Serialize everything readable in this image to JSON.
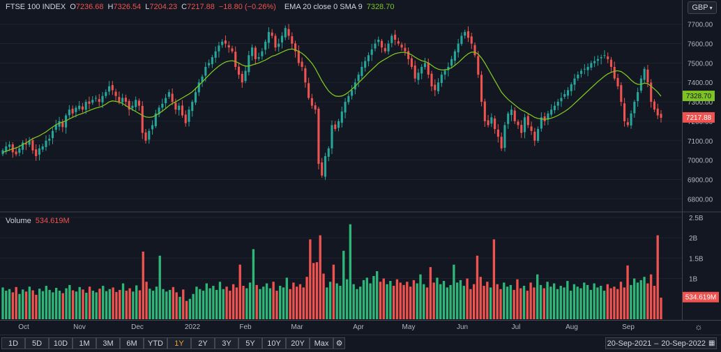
{
  "legend": {
    "symbol": "FTSE 100 INDEX",
    "o_label": "O",
    "o_value": "7236.68",
    "h_label": "H",
    "h_value": "7326.54",
    "l_label": "L",
    "l_value": "7204.23",
    "c_label": "C",
    "c_value": "7217.88",
    "change": "−18.80 (−0.26%)",
    "ema_label": "EMA 20 close 0 SMA 9",
    "ema_value": "7328.70"
  },
  "currency": "GBP",
  "volume_legend": {
    "label": "Volume",
    "value": "534.619M"
  },
  "colors": {
    "up": "#26a69a",
    "upbar": "#2fb679",
    "down": "#ef5350",
    "ema": "#7ec321",
    "bg": "#131722",
    "grid": "#1e222d",
    "axis_text": "#b2b5be"
  },
  "chart_data": {
    "type": "candlestick",
    "price_axis": {
      "ticks": [
        "7700.00",
        "7600.00",
        "7500.00",
        "7400.00",
        "7300.00",
        "7200.00",
        "7100.00",
        "7000.00",
        "6900.00",
        "6800.00"
      ],
      "ylim": [
        6740,
        7760
      ]
    },
    "volume_axis": {
      "ticks": [
        "2.5B",
        "2B",
        "1.5B",
        "1B"
      ],
      "ylim": [
        0,
        2.6
      ]
    },
    "x_labels": [
      "Oct",
      "Nov",
      "Dec",
      "2022",
      "Feb",
      "Mar",
      "Apr",
      "May",
      "Jun",
      "Jul",
      "Aug",
      "Sep"
    ],
    "price_markers": {
      "ema": "7328.70",
      "last": "7217.88"
    },
    "volume_marker": "534.619M",
    "closes": [
      7050,
      7070,
      7080,
      7040,
      7030,
      7060,
      7090,
      7080,
      7100,
      7050,
      7020,
      7060,
      7070,
      7100,
      7110,
      7150,
      7180,
      7200,
      7170,
      7230,
      7260,
      7240,
      7270,
      7280,
      7260,
      7300,
      7290,
      7310,
      7320,
      7300,
      7330,
      7350,
      7380,
      7360,
      7330,
      7300,
      7320,
      7300,
      7260,
      7280,
      7310,
      7280,
      7140,
      7100,
      7150,
      7180,
      7240,
      7270,
      7290,
      7320,
      7350,
      7300,
      7260,
      7280,
      7230,
      7190,
      7260,
      7300,
      7350,
      7400,
      7430,
      7480,
      7500,
      7530,
      7560,
      7590,
      7610,
      7600,
      7580,
      7560,
      7480,
      7440,
      7400,
      7460,
      7540,
      7580,
      7520,
      7530,
      7560,
      7610,
      7660,
      7640,
      7580,
      7600,
      7640,
      7680,
      7640,
      7600,
      7560,
      7500,
      7480,
      7400,
      7320,
      7280,
      7260,
      6980,
      6920,
      7020,
      7060,
      7180,
      7160,
      7200,
      7250,
      7300,
      7330,
      7360,
      7400,
      7440,
      7480,
      7510,
      7540,
      7570,
      7600,
      7620,
      7580,
      7560,
      7600,
      7640,
      7620,
      7600,
      7580,
      7560,
      7520,
      7480,
      7420,
      7450,
      7480,
      7500,
      7440,
      7380,
      7360,
      7400,
      7440,
      7460,
      7480,
      7520,
      7560,
      7600,
      7640,
      7660,
      7630,
      7600,
      7540,
      7440,
      7300,
      7200,
      7180,
      7220,
      7160,
      7120,
      7060,
      7180,
      7240,
      7260,
      7200,
      7180,
      7140,
      7220,
      7180,
      7150,
      7100,
      7160,
      7220,
      7200,
      7240,
      7260,
      7280,
      7300,
      7320,
      7340,
      7360,
      7390,
      7420,
      7440,
      7460,
      7470,
      7480,
      7500,
      7510,
      7520,
      7530,
      7540,
      7520,
      7480,
      7420,
      7380,
      7300,
      7200,
      7180,
      7240,
      7300,
      7350,
      7420,
      7470,
      7400,
      7300,
      7260,
      7230,
      7217.88
    ],
    "ema": [
      7040,
      7045,
      7052,
      7058,
      7062,
      7070,
      7080,
      7088,
      7100,
      7110,
      7118,
      7125,
      7135,
      7145,
      7158,
      7170,
      7182,
      7190,
      7196,
      7202,
      7212,
      7220,
      7228,
      7235,
      7240,
      7248,
      7255,
      7262,
      7268,
      7272,
      7278,
      7288,
      7300,
      7305,
      7302,
      7298,
      7292,
      7280,
      7270,
      7260,
      7250,
      7240,
      7230,
      7222,
      7220,
      7222,
      7230,
      7240,
      7252,
      7265,
      7280,
      7292,
      7300,
      7310,
      7320,
      7330,
      7340,
      7352,
      7368,
      7385,
      7402,
      7420,
      7438,
      7455,
      7470,
      7484,
      7496,
      7505,
      7510,
      7512,
      7508,
      7500,
      7490,
      7484,
      7484,
      7490,
      7495,
      7500,
      7508,
      7515,
      7525,
      7535,
      7540,
      7548,
      7556,
      7564,
      7570,
      7572,
      7568,
      7560,
      7550,
      7536,
      7518,
      7498,
      7472,
      7440,
      7408,
      7380,
      7356,
      7340,
      7330,
      7328,
      7330,
      7338,
      7350,
      7365,
      7380,
      7398,
      7415,
      7432,
      7450,
      7466,
      7482,
      7498,
      7510,
      7520,
      7530,
      7540,
      7548,
      7552,
      7555,
      7555,
      7550,
      7542,
      7530,
      7520,
      7512,
      7508,
      7500,
      7488,
      7476,
      7468,
      7464,
      7464,
      7468,
      7476,
      7488,
      7502,
      7518,
      7534,
      7548,
      7556,
      7556,
      7546,
      7526,
      7500,
      7470,
      7440,
      7410,
      7380,
      7350,
      7330,
      7312,
      7298,
      7284,
      7270,
      7258,
      7250,
      7240,
      7230,
      7220,
      7214,
      7212,
      7210,
      7212,
      7216,
      7222,
      7230,
      7240,
      7250,
      7262,
      7276,
      7292,
      7308,
      7324,
      7340,
      7356,
      7372,
      7388,
      7404,
      7418,
      7432,
      7444,
      7452,
      7458,
      7460,
      7456,
      7444,
      7430,
      7412,
      7398,
      7390,
      7390,
      7396,
      7394,
      7380,
      7366,
      7350,
      7328.7
    ],
    "volume_B": [
      0.78,
      0.7,
      0.74,
      0.66,
      0.79,
      0.62,
      0.73,
      0.68,
      0.8,
      0.71,
      0.6,
      0.75,
      0.69,
      0.82,
      0.72,
      0.66,
      0.77,
      0.7,
      0.64,
      0.76,
      0.84,
      0.71,
      0.68,
      0.79,
      0.73,
      0.65,
      0.8,
      0.7,
      0.66,
      0.75,
      0.82,
      0.69,
      0.74,
      0.78,
      0.67,
      0.72,
      0.88,
      0.7,
      0.76,
      0.68,
      0.83,
      0.71,
      1.66,
      0.92,
      0.75,
      0.7,
      0.8,
      1.56,
      0.74,
      0.68,
      0.72,
      0.79,
      0.66,
      0.55,
      0.73,
      0.45,
      0.5,
      0.62,
      0.8,
      0.74,
      0.7,
      0.88,
      0.76,
      0.82,
      0.72,
      0.92,
      0.74,
      0.8,
      0.7,
      0.86,
      0.78,
      1.34,
      0.82,
      0.76,
      0.9,
      1.72,
      0.84,
      0.74,
      0.8,
      0.88,
      0.76,
      0.92,
      0.7,
      0.82,
      0.78,
      1.02,
      0.74,
      0.9,
      0.8,
      0.86,
      0.78,
      1.04,
      1.96,
      1.38,
      1.4,
      2.06,
      1.12,
      0.78,
      0.92,
      1.34,
      0.88,
      0.82,
      1.68,
      0.98,
      2.33,
      0.86,
      0.74,
      0.8,
      0.96,
      1.02,
      0.88,
      1.06,
      1.18,
      0.92,
      1.0,
      0.86,
      0.94,
      0.82,
      0.98,
      0.9,
      0.84,
      0.92,
      0.8,
      0.96,
      0.88,
      1.1,
      0.86,
      0.78,
      1.28,
      0.9,
      1.02,
      0.86,
      0.94,
      0.78,
      0.84,
      1.34,
      0.9,
      0.96,
      0.82,
      1.0,
      0.74,
      0.86,
      1.56,
      1.04,
      0.82,
      0.92,
      0.78,
      1.96,
      0.86,
      0.74,
      0.9,
      0.8,
      0.84,
      0.72,
      0.98,
      0.76,
      0.82,
      0.7,
      0.9,
      0.78,
      1.1,
      0.84,
      0.76,
      0.92,
      0.8,
      0.88,
      0.74,
      0.82,
      0.78,
      0.94,
      0.7,
      0.86,
      0.8,
      0.76,
      0.9,
      0.84,
      0.72,
      0.88,
      0.78,
      0.82,
      0.7,
      0.86,
      0.76,
      0.8,
      0.74,
      0.92,
      0.78,
      1.32,
      0.84,
      1.0,
      0.9,
      0.96,
      1.04,
      0.88,
      1.1,
      0.82,
      2.06,
      0.53
    ]
  },
  "toolbar": {
    "buttons": [
      "1D",
      "5D",
      "10D",
      "1M",
      "3M",
      "6M",
      "YTD",
      "1Y",
      "2Y",
      "3Y",
      "5Y",
      "10Y",
      "20Y",
      "Max"
    ],
    "active": "1Y",
    "range_from": "20-Sep-2021",
    "range_sep": "–",
    "range_to": "20-Sep-2022"
  }
}
